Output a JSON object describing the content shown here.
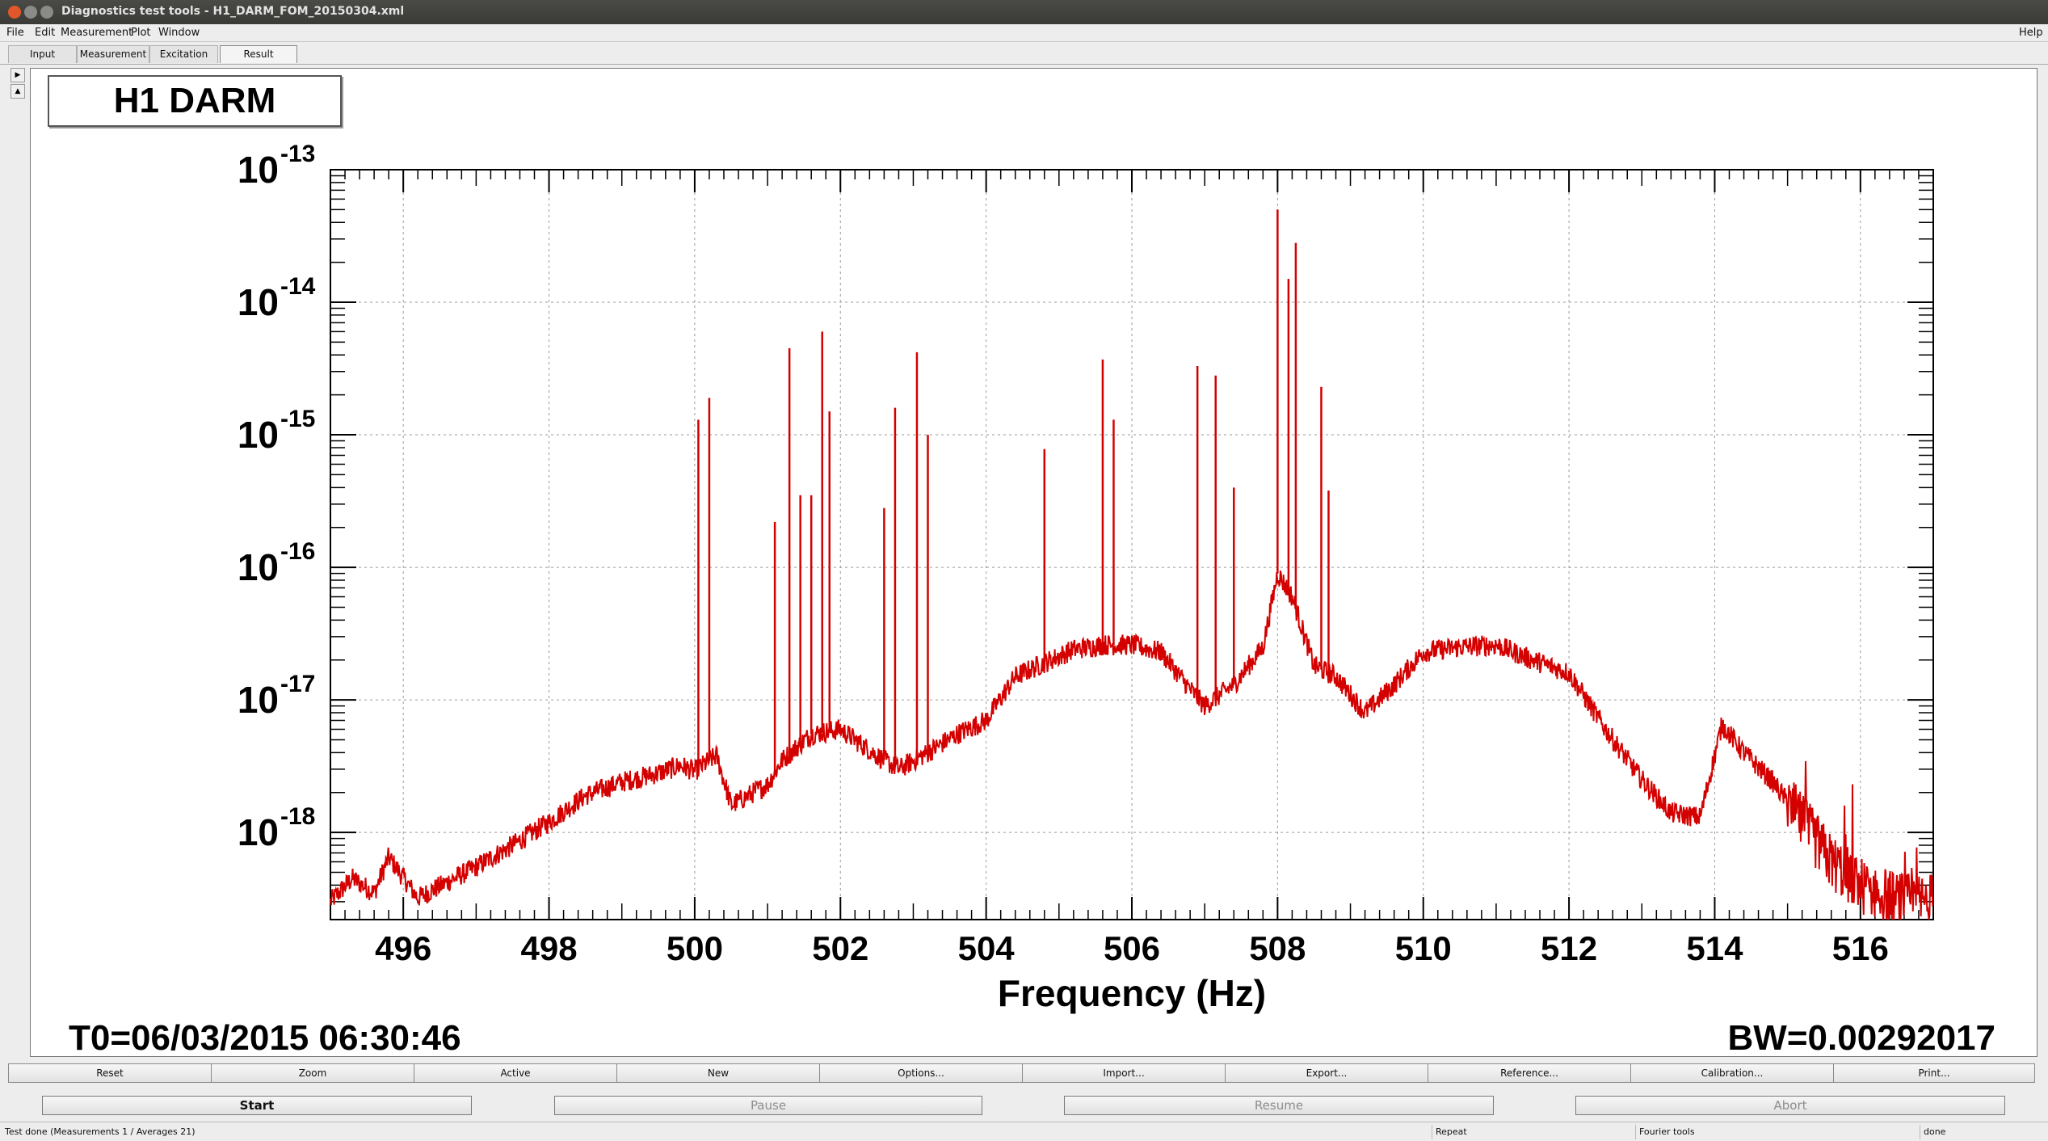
{
  "window": {
    "title": "Diagnostics test tools - H1_DARM_FOM_20150304.xml"
  },
  "menubar": {
    "items": [
      "File",
      "Edit",
      "Measurement",
      "Plot",
      "Window"
    ],
    "help": "Help"
  },
  "tabs": [
    {
      "label": "Input",
      "active": false
    },
    {
      "label": "Measurement",
      "active": false
    },
    {
      "label": "Excitation",
      "active": false
    },
    {
      "label": "Result",
      "active": true
    }
  ],
  "plot": {
    "title": "H1 DARM",
    "t0": "T0=06/03/2015 06:30:46",
    "bw": "BW=0.00292017"
  },
  "chart_data": {
    "type": "line",
    "title": "H1 DARM",
    "xlabel": "Frequency (Hz)",
    "ylabel": "",
    "xlim": [
      495,
      517
    ],
    "ylim": [
      2.2e-19,
      1e-13
    ],
    "y_scale": "log",
    "grid": true,
    "x_ticks": [
      "496",
      "498",
      "500",
      "502",
      "504",
      "506",
      "508",
      "510",
      "512",
      "514",
      "516"
    ],
    "y_ticks": [
      {
        "base": "10",
        "exp": "-13"
      },
      {
        "base": "10",
        "exp": "-14"
      },
      {
        "base": "10",
        "exp": "-15"
      },
      {
        "base": "10",
        "exp": "-16"
      },
      {
        "base": "10",
        "exp": "-17"
      },
      {
        "base": "10",
        "exp": "-18"
      }
    ],
    "line_color": "#d40000",
    "series": [
      {
        "x": [
          495.0,
          495.3,
          495.6,
          495.8,
          496.2,
          496.6,
          497.0,
          497.5,
          498.0,
          498.5,
          499.0,
          499.5,
          499.8,
          500.0,
          500.3,
          500.5,
          501.0,
          501.2,
          501.6,
          502.0,
          502.5,
          502.8,
          503.2,
          503.6,
          504.0,
          504.4,
          504.8,
          505.2,
          505.6,
          506.0,
          506.4,
          506.8,
          507.0,
          507.4,
          507.8,
          508.0,
          508.2,
          508.5,
          508.8,
          509.2,
          509.6,
          510.0,
          510.5,
          511.0,
          511.5,
          512.0,
          512.5,
          513.0,
          513.4,
          513.8,
          514.1,
          514.4,
          514.8,
          515.2,
          515.6,
          516.0,
          516.5,
          517.0
        ],
        "y": [
          3e-19,
          4.5e-19,
          3.5e-19,
          6.5e-19,
          3.2e-19,
          4.2e-19,
          5.5e-19,
          8e-19,
          1.2e-18,
          1.9e-18,
          2.4e-18,
          2.8e-18,
          3.2e-18,
          2.9e-18,
          3.8e-18,
          1.6e-18,
          2.3e-18,
          3.5e-18,
          5.5e-18,
          6e-18,
          3.8e-18,
          3e-18,
          4e-18,
          5.5e-18,
          7e-18,
          1.5e-17,
          1.9e-17,
          2.4e-17,
          2.6e-17,
          2.6e-17,
          2.3e-17,
          1.2e-17,
          9e-18,
          1.3e-17,
          2.5e-17,
          9e-17,
          6e-17,
          1.8e-17,
          1.5e-17,
          8e-18,
          1.3e-17,
          2.3e-17,
          2.5e-17,
          2.6e-17,
          2e-17,
          1.6e-17,
          6e-18,
          2.5e-18,
          1.4e-18,
          1.3e-18,
          6.5e-18,
          4e-18,
          2.4e-18,
          1.2e-18,
          6e-19,
          4e-19,
          3e-19,
          3e-19
        ]
      }
    ],
    "peaks": [
      {
        "x": 500.05,
        "y": 1.3e-15
      },
      {
        "x": 500.2,
        "y": 1.9e-15
      },
      {
        "x": 501.1,
        "y": 2.2e-16
      },
      {
        "x": 501.3,
        "y": 4.5e-15
      },
      {
        "x": 501.45,
        "y": 3.5e-16
      },
      {
        "x": 501.6,
        "y": 3.5e-16
      },
      {
        "x": 501.75,
        "y": 6e-15
      },
      {
        "x": 501.85,
        "y": 1.5e-15
      },
      {
        "x": 502.6,
        "y": 2.8e-16
      },
      {
        "x": 502.75,
        "y": 1.6e-15
      },
      {
        "x": 503.05,
        "y": 4.2e-15
      },
      {
        "x": 503.2,
        "y": 1e-15
      },
      {
        "x": 504.8,
        "y": 7.8e-16
      },
      {
        "x": 505.6,
        "y": 3.7e-15
      },
      {
        "x": 505.75,
        "y": 1.3e-15
      },
      {
        "x": 506.9,
        "y": 3.3e-15
      },
      {
        "x": 507.15,
        "y": 2.8e-15
      },
      {
        "x": 507.4,
        "y": 4e-16
      },
      {
        "x": 508.0,
        "y": 5e-14
      },
      {
        "x": 508.15,
        "y": 1.5e-14
      },
      {
        "x": 508.25,
        "y": 2.8e-14
      },
      {
        "x": 508.6,
        "y": 2.3e-15
      },
      {
        "x": 508.7,
        "y": 3.8e-16
      }
    ]
  },
  "toolbar": {
    "buttons": [
      "Reset",
      "Zoom",
      "Active",
      "New",
      "Options...",
      "Import...",
      "Export...",
      "Reference...",
      "Calibration...",
      "Print..."
    ]
  },
  "controls": {
    "start": "Start",
    "pause": "Pause",
    "resume": "Resume",
    "abort": "Abort"
  },
  "status": {
    "message": "Test done (Measurements 1 / Averages 21)",
    "repeat": "Repeat",
    "tool": "Fourier tools",
    "state": "done"
  }
}
